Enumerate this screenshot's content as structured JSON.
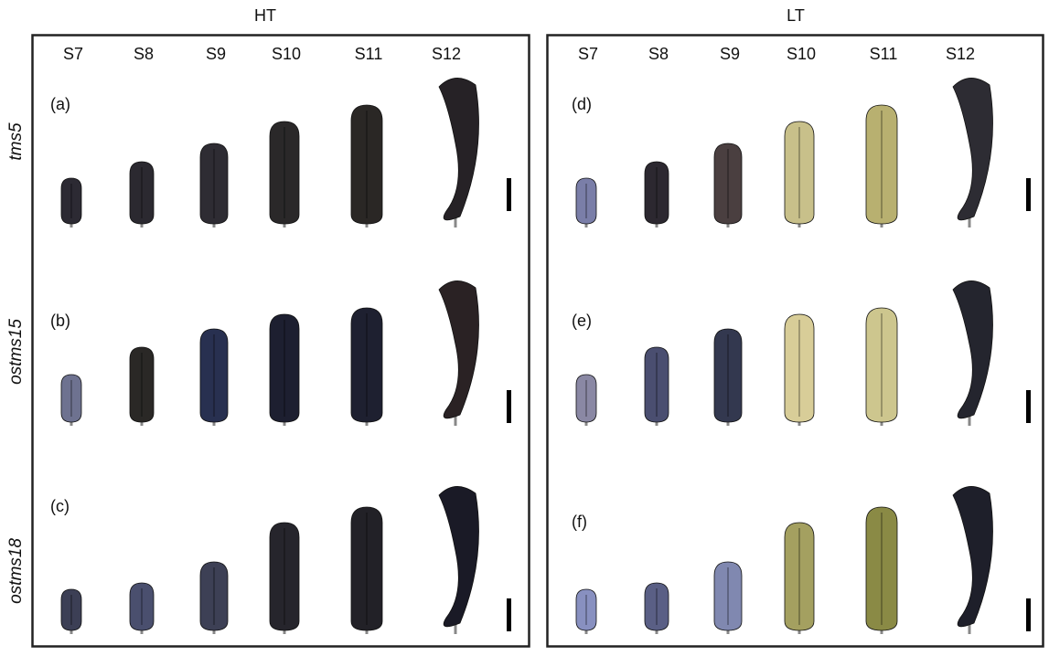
{
  "row_labels": [
    "tms5",
    "ostms15",
    "ostms18"
  ],
  "panels": [
    {
      "title": "HT",
      "stages": [
        "S7",
        "S8",
        "S9",
        "S10",
        "S11",
        "S12"
      ],
      "letters": [
        "(a)",
        "(b)",
        "(c)"
      ]
    },
    {
      "title": "LT",
      "stages": [
        "S7",
        "S8",
        "S9",
        "S10",
        "S11",
        "S12"
      ],
      "letters": [
        "(d)",
        "(e)",
        "(f)"
      ]
    }
  ]
}
